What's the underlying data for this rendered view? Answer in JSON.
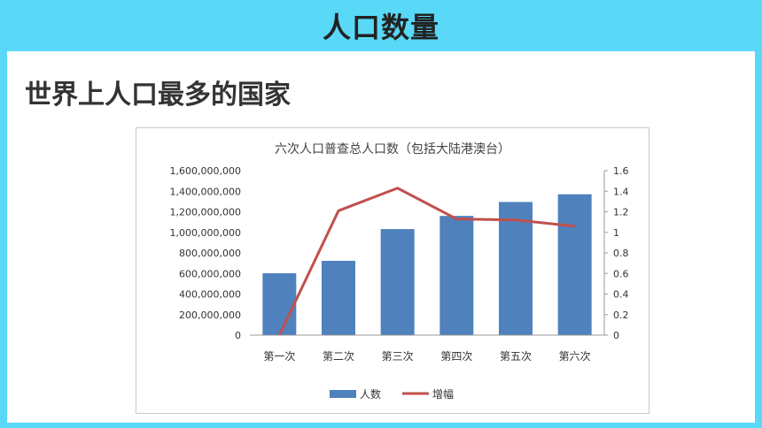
{
  "header": {
    "title": "人口数量"
  },
  "section": {
    "subtitle": "世界上人口最多的国家"
  },
  "colors": {
    "bar": "#4f81bd",
    "line": "#c0504d",
    "background": "#5ad8f8"
  },
  "chart_data": {
    "type": "bar",
    "title": "六次人口普查总人口数（包括大陆港澳台）",
    "categories": [
      "第一次",
      "第二次",
      "第三次",
      "第四次",
      "第五次",
      "第六次"
    ],
    "series": [
      {
        "name": "人数",
        "type": "bar",
        "axis": "left",
        "values": [
          601938035,
          723070269,
          1031882511,
          1160017381,
          1295330000,
          1370536875
        ]
      },
      {
        "name": "增幅",
        "type": "line",
        "axis": "right",
        "values": [
          0,
          1.21,
          1.43,
          1.13,
          1.12,
          1.06
        ]
      }
    ],
    "y_left": {
      "min": 0,
      "max": 1600000000,
      "step": 200000000,
      "tick_labels": [
        "0",
        "200,000,000",
        "400,000,000",
        "600,000,000",
        "800,000,000",
        "1,000,000,000",
        "1,200,000,000",
        "1,400,000,000",
        "1,600,000,000"
      ]
    },
    "y_right": {
      "min": 0,
      "max": 1.6,
      "step": 0.2,
      "tick_labels": [
        "0",
        "0.2",
        "0.4",
        "0.6",
        "0.8",
        "1",
        "1.2",
        "1.4",
        "1.6"
      ]
    },
    "grid": false,
    "legend": "bottom"
  }
}
